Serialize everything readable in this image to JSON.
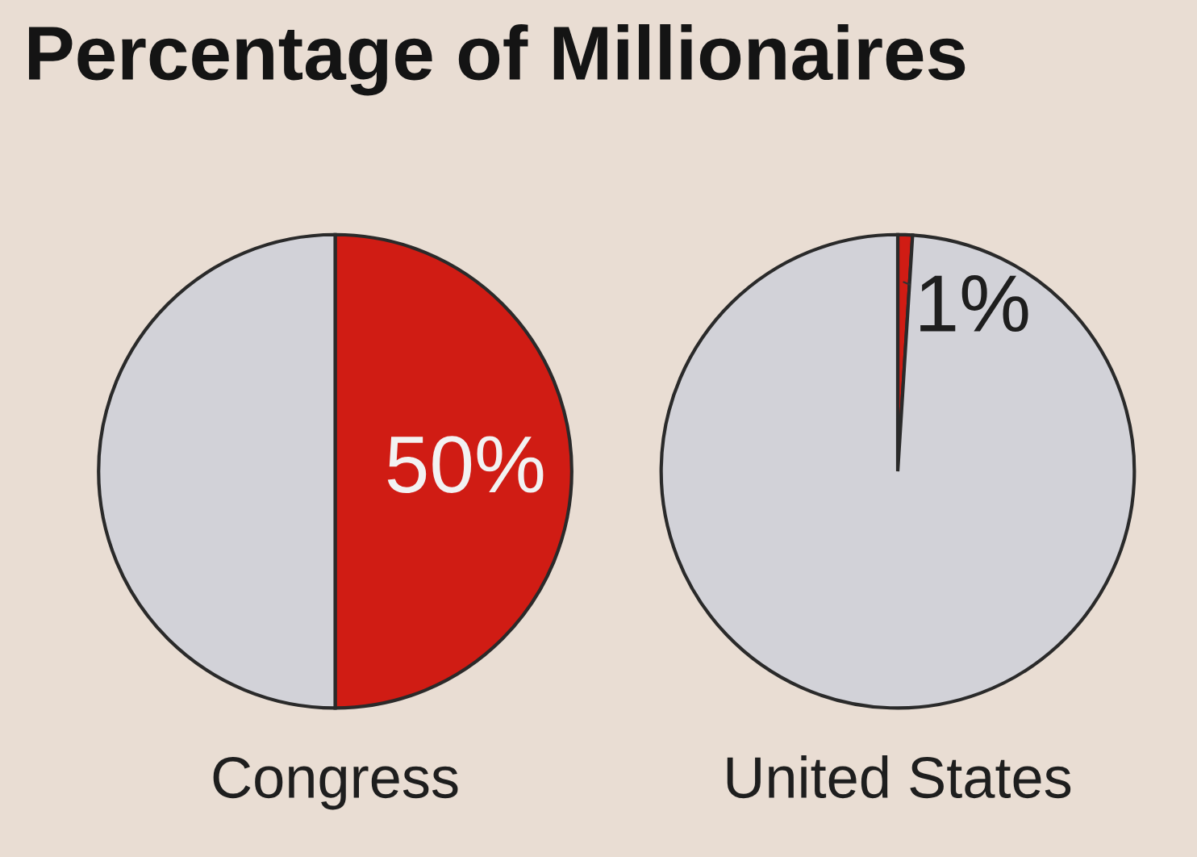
{
  "chart_data": [
    {
      "type": "pie",
      "title": "Percentage of Millionaires",
      "xlabel": "Congress",
      "categories": [
        null,
        null
      ],
      "values": [
        50,
        50
      ],
      "colors": [
        "#d01c14",
        "#d2d2d8"
      ],
      "value_labels": [
        "50%",
        null
      ]
    },
    {
      "type": "pie",
      "xlabel": "United States",
      "categories": [
        null,
        null
      ],
      "values": [
        1,
        99
      ],
      "colors": [
        "#d01c14",
        "#d2d2d8"
      ],
      "value_labels": [
        "1%",
        null
      ]
    }
  ]
}
